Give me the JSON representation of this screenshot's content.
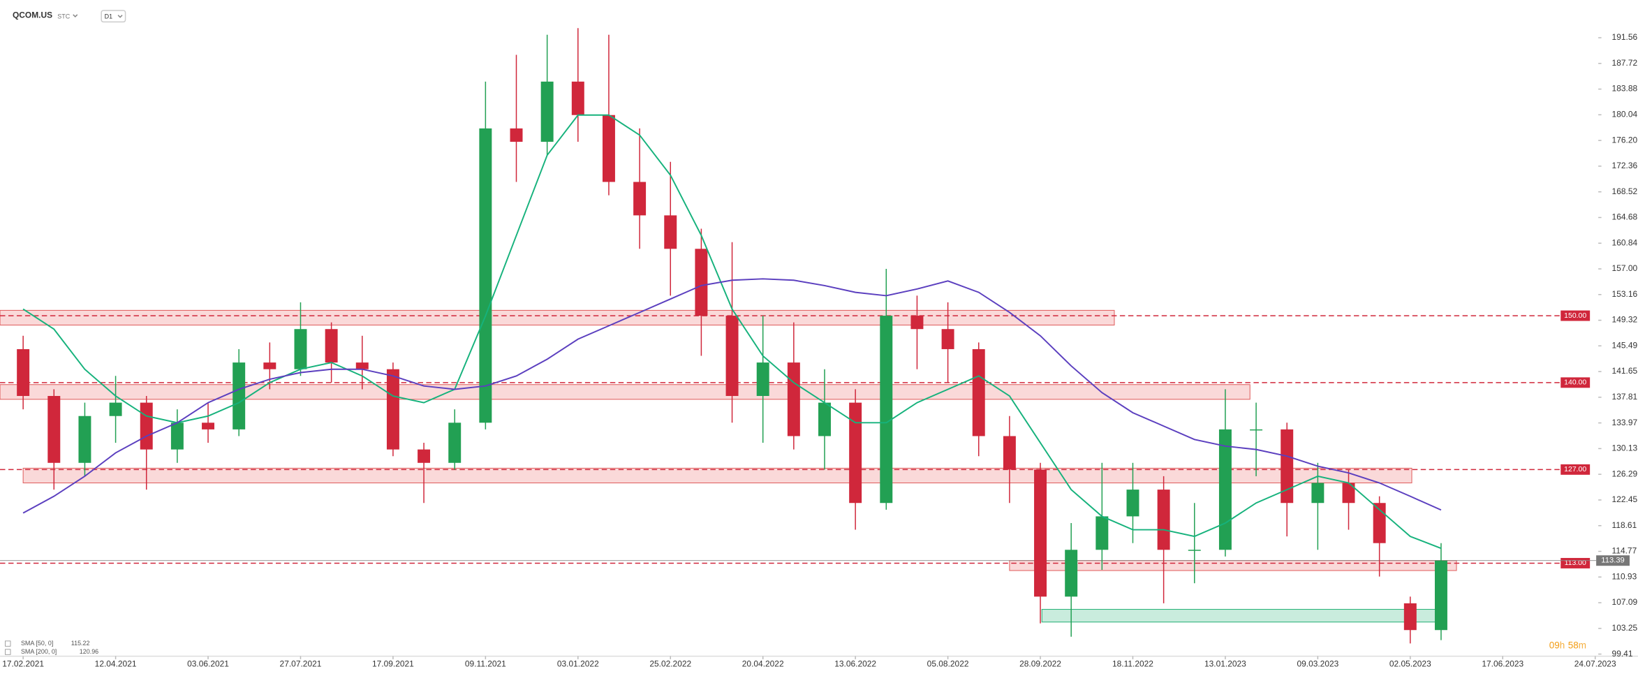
{
  "header": {
    "symbol": "QCOM.US",
    "source": "STC",
    "interval": "D1"
  },
  "chart_data": {
    "type": "candlestick",
    "up_color": "#22a053",
    "down_color": "#d0273b",
    "xlim": [
      -0.75,
      51.1
    ],
    "xticks": [
      {
        "value": 0,
        "label": "17.02.2021"
      },
      {
        "value": 3,
        "label": "12.04.2021"
      },
      {
        "value": 6,
        "label": "03.06.2021"
      },
      {
        "value": 9,
        "label": "27.07.2021"
      },
      {
        "value": 12,
        "label": "17.09.2021"
      },
      {
        "value": 15,
        "label": "09.11.2021"
      },
      {
        "value": 18,
        "label": "03.01.2022"
      },
      {
        "value": 21,
        "label": "25.02.2022"
      },
      {
        "value": 24,
        "label": "20.04.2022"
      },
      {
        "value": 27,
        "label": "13.06.2022"
      },
      {
        "value": 30,
        "label": "05.08.2022"
      },
      {
        "value": 33,
        "label": "28.09.2022"
      },
      {
        "value": 36,
        "label": "18.11.2022"
      },
      {
        "value": 39,
        "label": "13.01.2023"
      },
      {
        "value": 42,
        "label": "09.03.2023"
      },
      {
        "value": 45,
        "label": "02.05.2023"
      },
      {
        "value": 48,
        "label": "17.06.2023"
      },
      {
        "value": 51,
        "label": "24.07.2023"
      }
    ],
    "ylim": [
      99.1,
      197.2
    ],
    "yticks": [
      191.56,
      187.72,
      183.88,
      180.04,
      {
        "value": 176.2,
        "label": "176.20"
      },
      172.36,
      168.52,
      164.68,
      160.84,
      {
        "value": 157,
        "label": "157.00"
      },
      153.16,
      149.32,
      145.49,
      141.65,
      137.81,
      133.97,
      130.13,
      126.29,
      122.45,
      118.61,
      114.77,
      110.93,
      107.09,
      103.25,
      99.41
    ],
    "open": [
      145,
      138,
      128,
      135,
      137,
      130,
      134,
      133,
      143,
      142,
      148,
      143,
      142,
      130,
      128,
      134,
      178,
      176,
      185,
      180,
      170,
      165,
      160,
      150,
      138,
      143,
      132,
      137,
      122,
      150,
      148,
      145,
      132,
      127,
      108,
      115,
      120,
      124,
      115,
      115,
      133,
      133,
      122,
      125,
      122,
      107,
      103
    ],
    "high": [
      147,
      139,
      137,
      141,
      138,
      136,
      137,
      145,
      146,
      152,
      149,
      147,
      143,
      131,
      136,
      185,
      189,
      192,
      193,
      192,
      178,
      173,
      163,
      161,
      150,
      149,
      142,
      139,
      157,
      153,
      152,
      146,
      135,
      128,
      119,
      128,
      128,
      126,
      122,
      139,
      137,
      134,
      128,
      127,
      123,
      108,
      116
    ],
    "low": [
      136,
      124,
      126,
      131,
      124,
      128,
      131,
      132,
      139,
      141,
      140,
      139,
      129,
      122,
      127,
      133,
      170,
      174,
      176,
      168,
      160,
      153,
      144,
      134,
      131,
      130,
      127,
      118,
      121,
      142,
      140,
      129,
      122,
      104,
      102,
      112,
      116,
      107,
      110,
      114,
      126,
      117,
      115,
      118,
      111,
      101,
      101.5
    ],
    "close": [
      138,
      128,
      135,
      137,
      130,
      134,
      133,
      143,
      142,
      148,
      143,
      142,
      130,
      128,
      134,
      178,
      176,
      185,
      180,
      170,
      165,
      160,
      150,
      138,
      143,
      132,
      137,
      122,
      150,
      148,
      145,
      132,
      127,
      108,
      115,
      120,
      124,
      115,
      115,
      133,
      133,
      122,
      125,
      122,
      116,
      103,
      113.39
    ],
    "series": [
      {
        "name": "SMA [50, 0]",
        "color": "#16b27c",
        "last_value": 115.22,
        "values": [
          151,
          148,
          142,
          138,
          135,
          134,
          135,
          137,
          140,
          142,
          143,
          141,
          138,
          137,
          139,
          150,
          162,
          174,
          180,
          180,
          177,
          171,
          162,
          151,
          144,
          140,
          137,
          134,
          134,
          137,
          139,
          141,
          138,
          131,
          124,
          120,
          118,
          118,
          117,
          119,
          122,
          124,
          126,
          125,
          121,
          117,
          115.22
        ]
      },
      {
        "name": "SMA [200, 0]",
        "color": "#5b3fbf",
        "last_value": 120.96,
        "values": [
          120.5,
          123,
          126,
          129.5,
          132,
          134,
          137,
          139,
          140.5,
          141.5,
          142,
          142,
          141,
          139.5,
          139,
          139.5,
          141,
          143.5,
          146.5,
          148.5,
          150.5,
          152.5,
          154.5,
          155.3,
          155.5,
          155.3,
          154.5,
          153.5,
          153,
          154,
          155.2,
          153.5,
          150.5,
          147,
          142.5,
          138.5,
          135.5,
          133.5,
          131.5,
          130.5,
          130,
          129,
          127.5,
          126.5,
          125,
          123,
          120.96
        ]
      }
    ],
    "levels": [
      {
        "value": 150,
        "label": "150.00"
      },
      {
        "value": 140,
        "label": "140.00"
      },
      {
        "value": 127,
        "label": "127.00"
      },
      {
        "value": 113,
        "label": "113.00"
      }
    ],
    "resistance_zones": [
      {
        "low": 148.6,
        "high": 150.8,
        "start": -0.75,
        "end": 35.4
      },
      {
        "low": 137.5,
        "high": 139.7,
        "start": -0.75,
        "end": 39.8
      },
      {
        "low": 125.0,
        "high": 127.2,
        "start": 0,
        "end": 45.05
      },
      {
        "low": 111.9,
        "high": 113.4,
        "start": 32.0,
        "end": 46.5
      }
    ],
    "support_zone": {
      "low": 104.2,
      "high": 106.1,
      "start": 33.05,
      "end": 45.9
    },
    "current_price": 113.39,
    "countdown": {
      "hours": "09",
      "hours_unit": "h",
      "minutes": "58",
      "minutes_unit": "m"
    }
  }
}
